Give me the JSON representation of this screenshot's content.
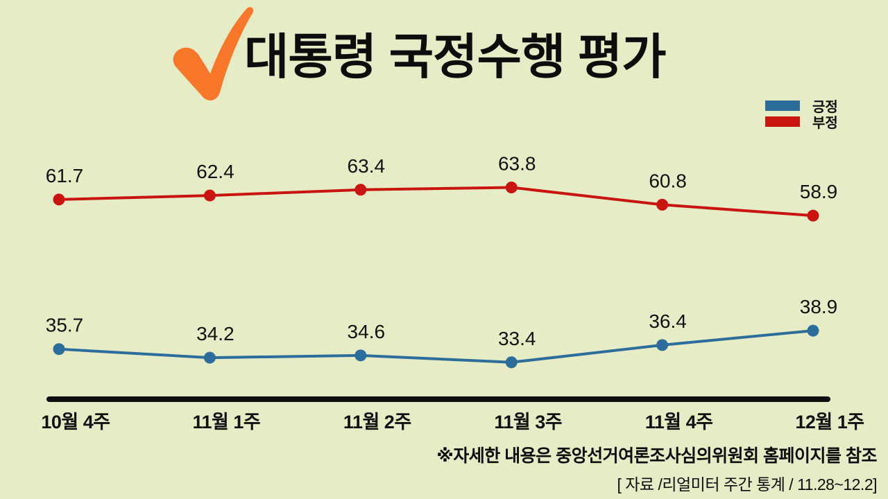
{
  "page": {
    "background_color": "#e6ecc5"
  },
  "header": {
    "title": "대통령 국정수행 평가",
    "check_icon_color": "#f8772a"
  },
  "legend": {
    "position": "top-right",
    "items": [
      {
        "label": "긍정",
        "color": "#2c6d9b"
      },
      {
        "label": "부정",
        "color": "#c9150f"
      }
    ]
  },
  "chart_data": {
    "type": "line",
    "title": "대통령 국정수행 평가",
    "categories": [
      "10월 4주",
      "11월 1주",
      "11월 2주",
      "11월 3주",
      "11월 4주",
      "12월 1주"
    ],
    "series": [
      {
        "name": "긍정",
        "color": "#2c6d9b",
        "values": [
          35.7,
          34.2,
          34.6,
          33.4,
          36.4,
          38.9
        ]
      },
      {
        "name": "부정",
        "color": "#c9150f",
        "values": [
          61.7,
          62.4,
          63.4,
          63.8,
          60.8,
          58.9
        ]
      }
    ],
    "xlabel": "",
    "ylabel": "",
    "ylim": [
      25,
      70
    ],
    "grid": false,
    "data_labels": true,
    "legend_position": "top-right",
    "axis_line_color": "#0d0d0d"
  },
  "footer": {
    "note": "※자세한 내용은 중앙선거여론조사심의위원회 홈페이지를 참조",
    "source": "[ 자료 /리얼미터 주간 통계 / 11.28~12.2]"
  }
}
